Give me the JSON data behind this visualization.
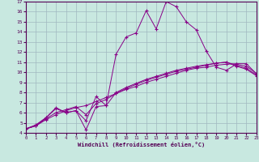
{
  "xlabel": "Windchill (Refroidissement éolien,°C)",
  "bg_color": "#c8e8e0",
  "grid_color": "#a0b8c0",
  "line_color": "#880088",
  "xlim": [
    0,
    23
  ],
  "ylim": [
    4,
    17
  ],
  "yticks": [
    4,
    5,
    6,
    7,
    8,
    9,
    10,
    11,
    12,
    13,
    14,
    15,
    16,
    17
  ],
  "xticks": [
    0,
    1,
    2,
    3,
    4,
    5,
    6,
    7,
    8,
    9,
    10,
    11,
    12,
    13,
    14,
    15,
    16,
    17,
    18,
    19,
    20,
    21,
    22,
    23
  ],
  "lines": [
    {
      "x": [
        0,
        1,
        2,
        3,
        4,
        5,
        6,
        7,
        8,
        9,
        10,
        11,
        12,
        13,
        14,
        15,
        16,
        17,
        18,
        19,
        20,
        21,
        22,
        23
      ],
      "y": [
        4.4,
        4.7,
        5.3,
        5.8,
        6.2,
        6.5,
        6.7,
        7.1,
        7.5,
        7.9,
        8.3,
        8.6,
        9.0,
        9.3,
        9.6,
        9.9,
        10.2,
        10.4,
        10.5,
        10.7,
        10.8,
        10.85,
        10.85,
        9.85
      ]
    },
    {
      "x": [
        0,
        1,
        2,
        3,
        4,
        5,
        6,
        7,
        8,
        9,
        10,
        11,
        12,
        13,
        14,
        15,
        16,
        17,
        18,
        19,
        20,
        21,
        22,
        23
      ],
      "y": [
        4.4,
        4.7,
        5.4,
        6.0,
        6.3,
        6.6,
        5.8,
        6.9,
        7.3,
        7.9,
        8.4,
        8.8,
        9.2,
        9.5,
        9.8,
        10.1,
        10.3,
        10.5,
        10.7,
        10.9,
        11.0,
        10.7,
        10.4,
        9.75
      ]
    },
    {
      "x": [
        0,
        1,
        2,
        3,
        4,
        5,
        6,
        7,
        8,
        9,
        10,
        11,
        12,
        13,
        14,
        15,
        16,
        17,
        18,
        19,
        20,
        21,
        22,
        23
      ],
      "y": [
        4.4,
        4.7,
        5.5,
        6.4,
        6.0,
        6.2,
        4.3,
        6.6,
        6.7,
        11.8,
        13.5,
        13.9,
        16.1,
        14.3,
        17.0,
        16.5,
        15.0,
        14.2,
        12.1,
        10.5,
        10.2,
        10.8,
        10.6,
        9.9
      ]
    },
    {
      "x": [
        0,
        1,
        2,
        3,
        4,
        5,
        6,
        7,
        8,
        9,
        10,
        11,
        12,
        13,
        14,
        15,
        16,
        17,
        18,
        19,
        20,
        21,
        22,
        23
      ],
      "y": [
        4.4,
        4.8,
        5.5,
        6.5,
        6.0,
        6.2,
        5.2,
        7.6,
        6.7,
        8.0,
        8.5,
        8.9,
        9.3,
        9.6,
        9.9,
        10.2,
        10.4,
        10.6,
        10.75,
        10.9,
        11.0,
        10.6,
        10.3,
        9.65
      ]
    }
  ]
}
